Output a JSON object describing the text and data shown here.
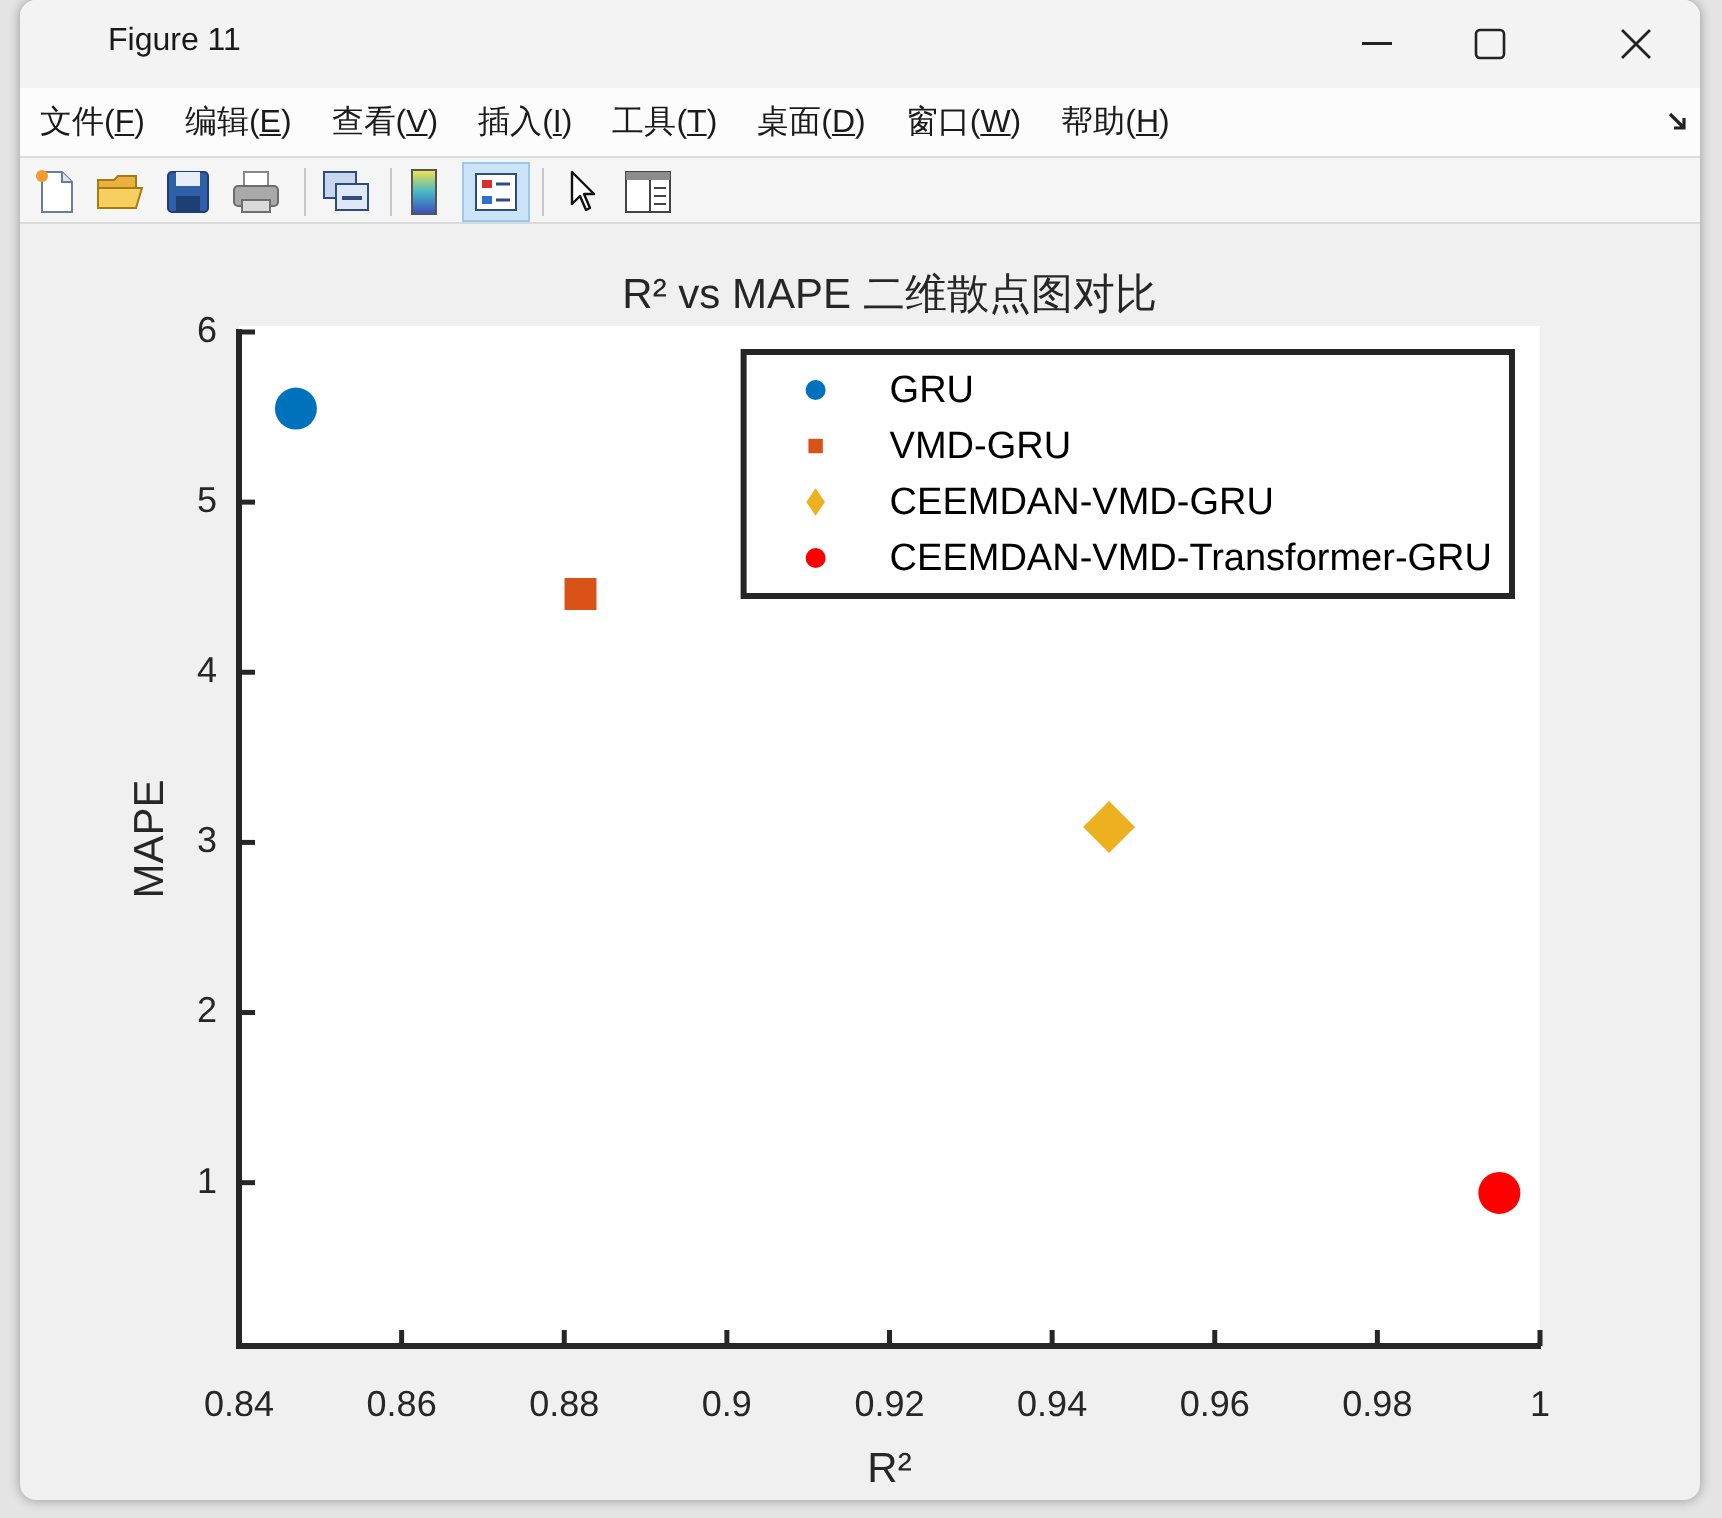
{
  "chart_data": {
    "type": "scatter",
    "title": "R² vs MAPE 二维散点图对比",
    "xlabel": "R²",
    "ylabel": "MAPE",
    "series": [
      {
        "name": "GRU",
        "color": "#0072bd",
        "marker": "circle",
        "x": [
          0.847
        ],
        "values": [
          5.55
        ]
      },
      {
        "name": "VMD-GRU",
        "color": "#d95319",
        "marker": "square",
        "x": [
          0.882
        ],
        "values": [
          4.46
        ]
      },
      {
        "name": "CEEMDAN-VMD-GRU",
        "color": "#edb120",
        "marker": "diamond",
        "x": [
          0.947
        ],
        "values": [
          3.09
        ]
      },
      {
        "name": "CEEMDAN-VMD-Transformer-GRU",
        "color": "#ff0000",
        "marker": "circle",
        "x": [
          0.995
        ],
        "values": [
          0.94
        ]
      }
    ],
    "xlim": [
      0.84,
      1
    ],
    "xticks": [
      0.84,
      0.86,
      0.88,
      0.9,
      0.92,
      0.94,
      0.96,
      0.98,
      1
    ],
    "ylim": [
      0.04,
      6
    ],
    "yticks": [
      1,
      2,
      3,
      4,
      5,
      6
    ],
    "grid": false,
    "legend": "top right",
    "annotations": [
      "Figure 11",
      "文件(F)",
      "编辑(E)",
      "查看(V)",
      "插入(I)",
      "工具(T)",
      "桌面(D)",
      "窗口(W)",
      "帮助(H)"
    ]
  }
}
